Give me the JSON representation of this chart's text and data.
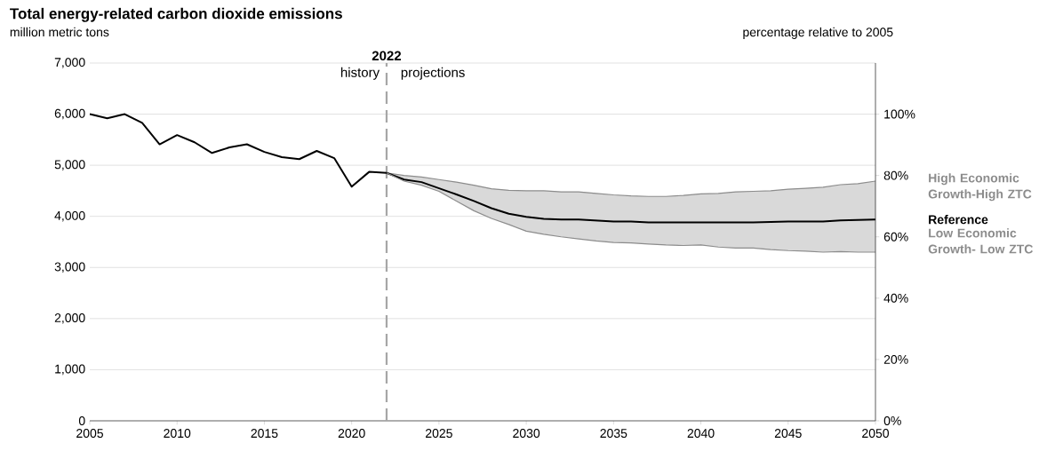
{
  "chart_data": {
    "type": "line",
    "title": "Total energy-related carbon dioxide emissions",
    "subtitle": "million metric tons",
    "y2label": "percentage relative to 2005",
    "x": [
      2005,
      2006,
      2007,
      2008,
      2009,
      2010,
      2011,
      2012,
      2013,
      2014,
      2015,
      2016,
      2017,
      2018,
      2019,
      2020,
      2021,
      2022,
      2023,
      2024,
      2025,
      2026,
      2027,
      2028,
      2029,
      2030,
      2031,
      2032,
      2033,
      2034,
      2035,
      2036,
      2037,
      2038,
      2039,
      2040,
      2041,
      2042,
      2043,
      2044,
      2045,
      2046,
      2047,
      2048,
      2049,
      2050
    ],
    "series": [
      {
        "name": "High Economic Growth-High ZTC",
        "color": "#8c8c8c",
        "x": [
          2022,
          2023,
          2024,
          2025,
          2026,
          2027,
          2028,
          2029,
          2030,
          2031,
          2032,
          2033,
          2034,
          2035,
          2036,
          2037,
          2038,
          2039,
          2040,
          2041,
          2042,
          2043,
          2044,
          2045,
          2046,
          2047,
          2048,
          2049,
          2050
        ],
        "values": [
          4850,
          4800,
          4770,
          4720,
          4670,
          4610,
          4540,
          4510,
          4500,
          4500,
          4480,
          4480,
          4450,
          4420,
          4400,
          4390,
          4390,
          4410,
          4440,
          4450,
          4480,
          4490,
          4500,
          4530,
          4550,
          4570,
          4620,
          4640,
          4690
        ]
      },
      {
        "name": "Reference",
        "color": "#000000",
        "values": [
          6000,
          5920,
          6000,
          5830,
          5410,
          5590,
          5450,
          5240,
          5350,
          5410,
          5260,
          5160,
          5120,
          5280,
          5140,
          4580,
          4870,
          4850,
          4720,
          4670,
          4550,
          4430,
          4300,
          4160,
          4050,
          3990,
          3950,
          3940,
          3940,
          3920,
          3900,
          3900,
          3880,
          3880,
          3880,
          3880,
          3880,
          3880,
          3880,
          3890,
          3900,
          3900,
          3900,
          3920,
          3930,
          3940
        ],
        "lower": [
          null,
          null,
          null,
          null,
          null,
          null,
          null,
          null,
          null,
          null,
          null,
          null,
          null,
          null,
          null,
          null,
          null,
          4850,
          4690,
          4610,
          4490,
          4300,
          4110,
          3960,
          3840,
          3710,
          3650,
          3600,
          3560,
          3520,
          3490,
          3480,
          3460,
          3440,
          3430,
          3440,
          3400,
          3380,
          3380,
          3350,
          3330,
          3320,
          3300,
          3310,
          3300,
          3300
        ],
        "upper": [
          null,
          null,
          null,
          null,
          null,
          null,
          null,
          null,
          null,
          null,
          null,
          null,
          null,
          null,
          null,
          null,
          null,
          4850,
          4800,
          4770,
          4720,
          4670,
          4610,
          4540,
          4510,
          4500,
          4500,
          4480,
          4480,
          4450,
          4420,
          4400,
          4390,
          4390,
          4410,
          4440,
          4450,
          4480,
          4490,
          4500,
          4530,
          4550,
          4570,
          4620,
          4640,
          4690
        ]
      },
      {
        "name": "Low Economic Growth- Low ZTC",
        "color": "#8c8c8c",
        "x": [
          2022,
          2023,
          2024,
          2025,
          2026,
          2027,
          2028,
          2029,
          2030,
          2031,
          2032,
          2033,
          2034,
          2035,
          2036,
          2037,
          2038,
          2039,
          2040,
          2041,
          2042,
          2043,
          2044,
          2045,
          2046,
          2047,
          2048,
          2049,
          2050
        ],
        "values": [
          4850,
          4690,
          4610,
          4490,
          4300,
          4110,
          3960,
          3840,
          3710,
          3650,
          3600,
          3560,
          3520,
          3490,
          3480,
          3460,
          3440,
          3430,
          3440,
          3400,
          3380,
          3380,
          3350,
          3330,
          3320,
          3300,
          3310,
          3300,
          3300
        ]
      }
    ],
    "xlim": [
      2005,
      2050
    ],
    "xticks": [
      2005,
      2010,
      2015,
      2020,
      2025,
      2030,
      2035,
      2040,
      2045,
      2050
    ],
    "ylim": [
      0,
      7000
    ],
    "yticks": [
      0,
      {
        "value": 1000,
        "label": "1,000"
      },
      {
        "value": 2000,
        "label": "2,000"
      },
      {
        "value": 3000,
        "label": "3,000"
      },
      {
        "value": 4000,
        "label": "4,000"
      },
      {
        "value": 5000,
        "label": "5,000"
      },
      {
        "value": 6000,
        "label": "6,000"
      },
      {
        "value": 7000,
        "label": "7,000"
      }
    ],
    "y2lim": [
      0,
      116.67
    ],
    "y2ticks": [
      {
        "value": 0,
        "label": "0%"
      },
      {
        "value": 20,
        "label": "20%"
      },
      {
        "value": 40,
        "label": "40%"
      },
      {
        "value": 60,
        "label": "60%"
      },
      {
        "value": 80,
        "label": "80%"
      },
      {
        "value": 100,
        "label": "100%"
      }
    ],
    "ref_lines": [
      {
        "axis": "x",
        "value": 2022,
        "label": "2022",
        "color": "#a6a6a6",
        "line_style": "dashed"
      }
    ],
    "annotations": [
      "history",
      "projections"
    ],
    "grid": "y",
    "legend": false,
    "marker": "none"
  }
}
